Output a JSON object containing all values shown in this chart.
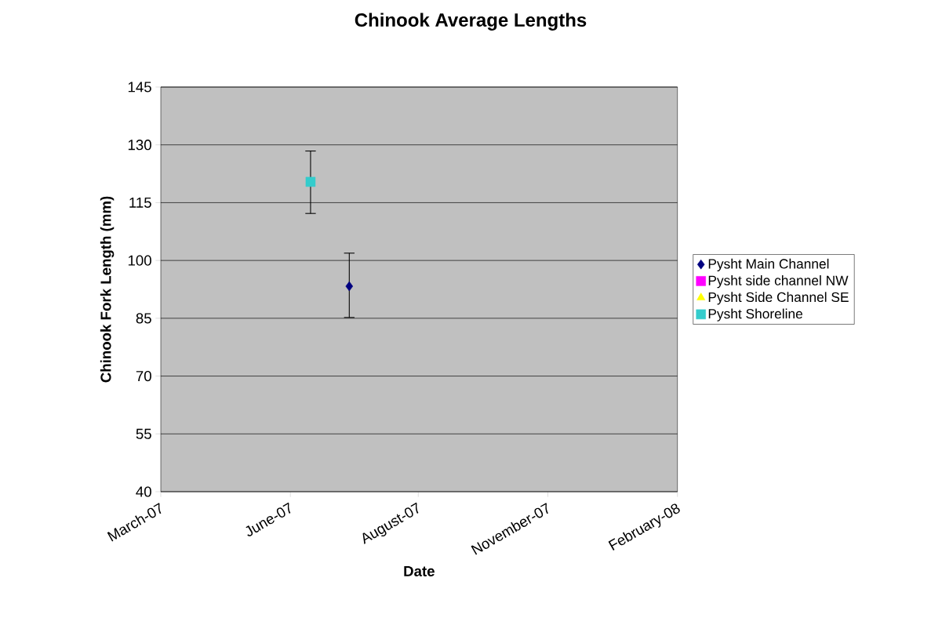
{
  "chart_data": {
    "type": "scatter",
    "title": "Chinook Average Lengths",
    "xlabel": "Date",
    "ylabel": "Chinook Fork Length (mm)",
    "xlim": [
      "2007-03-31",
      "2008-02-01"
    ],
    "xticks": [
      {
        "value": "2007-03-31",
        "label": "March-07"
      },
      {
        "value": "2007-06-16",
        "label": "June-07"
      },
      {
        "value": "2007-08-31",
        "label": "August-07"
      },
      {
        "value": "2007-11-16",
        "label": "November-07"
      },
      {
        "value": "2008-02-01",
        "label": "February-08"
      }
    ],
    "ylim": [
      40,
      145
    ],
    "yticks": [
      40,
      55,
      70,
      85,
      100,
      115,
      130,
      145
    ],
    "grid": "y",
    "legend": "right",
    "series": [
      {
        "name": "Pysht Main Channel",
        "color": "#000080",
        "marker": "diamond",
        "x": [
          "2007-07-21"
        ],
        "values": [
          93.3
        ],
        "errors": [
          [
            85.2,
            101.9
          ]
        ]
      },
      {
        "name": "Pysht side channel NW",
        "color": "#ff00ff",
        "marker": "square"
      },
      {
        "name": "Pysht Side Channel SE",
        "color": "#ffff00",
        "marker": "triangle"
      },
      {
        "name": "Pysht Shoreline",
        "color": "#33cccc",
        "marker": "square",
        "x": [
          "2007-06-28"
        ],
        "values": [
          120.4
        ],
        "errors": [
          [
            112.2,
            128.4
          ]
        ]
      }
    ]
  }
}
